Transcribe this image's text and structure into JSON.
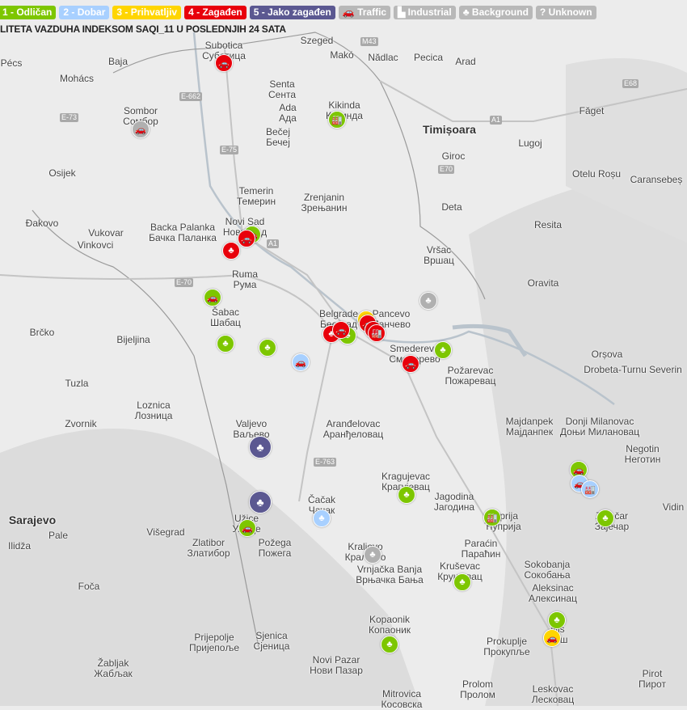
{
  "legend": [
    {
      "label": "1 - Odličan",
      "color": "#7dc600"
    },
    {
      "label": "2 - Dobar",
      "color": "#a8d0ff"
    },
    {
      "label": "3 - Prihvatljiv",
      "color": "#ffd500"
    },
    {
      "label": "4 - Zagađen",
      "color": "#e8000b"
    },
    {
      "label": "5 - Jako zagađen",
      "color": "#5b5891"
    },
    {
      "label": "Traffic",
      "color": "#b8b8b8",
      "icon": "car-icon"
    },
    {
      "label": "Industrial",
      "color": "#b8b8b8",
      "icon": "factory-icon"
    },
    {
      "label": "Background",
      "color": "#b8b8b8",
      "icon": "tree-icon"
    },
    {
      "label": "Unknown",
      "color": "#b8b8b8",
      "icon": "question-icon"
    }
  ],
  "title": "LITETA VAZDUHA INDEKSOM SAQI_11 U POSLEDNJIH 24 SATA",
  "cities": [
    "Subotica\nСуботица",
    "Sombor\nСомбор",
    "Kikinda\nКикинда",
    "Senta\nСента",
    "Ada\nАда",
    "Bečej\nБечеј",
    "Temerin\nТемерин",
    "Zrenjanin\nЗрењанин",
    "Novi Sad\nНови Сад",
    "Backa Palanka\nБачка Паланка",
    "Ruma\nРума",
    "Šabac\nШабац",
    "Belgrade\nБеоград",
    "Pancevo\nПанчево",
    "Smederevo\nСмедерево",
    "Požarevac\nПожаревац",
    "Vršac\nВршац",
    "Valjevo\nВаљево",
    "Aranđelovac\nАранђеловац",
    "Kragujevac\nКрагујевац",
    "Jagodina\nЈагодина",
    "Užice\nУжице",
    "Čačak\nЧачак",
    "Kraljevo\nКраљево",
    "Požega\nПожега",
    "Zlatibor\nЗлатибор",
    "Vrnjačka Banja\nВрњачка Бања",
    "Kruševac\nКрушевац",
    "Paraćin\nПараћин",
    "Ćuprija\nЋуприја",
    "Zaječar\nЗајечар",
    "Niš\nНиш",
    "Prokuplje\nПрокупље",
    "Aleksinac\nАлексинац",
    "Sokobanja\nСокобања",
    "Leskovac\nЛесковац",
    "Novi Pazar\nНови Пазар",
    "Kopaonik\nКопаоник",
    "Sjenica\nСјеница",
    "Prijepolje\nПријепоље",
    "Mitrovica\nКосовска",
    "Loznica\nЛозница",
    "Bijeljina",
    "Tuzla",
    "Brčko",
    "Vukovar",
    "Vinkovci",
    "Osijek",
    "Đakovo",
    "Sarajevo",
    "Timișoara",
    "Arad",
    "Makó",
    "Szeged",
    "Baja",
    "Pécs",
    "Mohács",
    "Nădlac",
    "Pecica",
    "Lugoj",
    "Făget",
    "Caransebeș",
    "Resita",
    "Oravita",
    "Giroc",
    "Deta",
    "Orșova",
    "Drobeta-Turnu Severin",
    "Negotin\nНеготин",
    "Donji Milanovac\nДоњи Милановац",
    "Majdanpek\nМајданпек",
    "Vidin",
    "Pirot\nПирот",
    "Prolom\nПролом",
    "Otelu Roșu",
    "Zvornik",
    "Višegrad",
    "Foča",
    "Ilidža",
    "Pale",
    "Žabljak\nЖабљак"
  ],
  "markers": [
    {
      "level": 4,
      "type": "traffic"
    },
    {
      "level": 0,
      "type": "traffic"
    },
    {
      "level": 1,
      "type": "industrial"
    },
    {
      "level": 1,
      "type": "traffic"
    },
    {
      "level": 4,
      "type": "traffic"
    },
    {
      "level": 4,
      "type": "background"
    },
    {
      "level": 1,
      "type": "traffic"
    },
    {
      "level": 1,
      "type": "background"
    },
    {
      "level": 1,
      "type": "background"
    },
    {
      "level": 2,
      "type": "traffic"
    },
    {
      "level": 1,
      "type": "background"
    },
    {
      "level": 4,
      "type": "background"
    },
    {
      "level": 4,
      "type": "traffic"
    },
    {
      "level": 3,
      "type": "traffic"
    },
    {
      "level": 4,
      "type": "traffic"
    },
    {
      "level": 4,
      "type": "traffic"
    },
    {
      "level": 4,
      "type": "industrial"
    },
    {
      "level": 0,
      "type": "background"
    },
    {
      "level": 4,
      "type": "traffic"
    },
    {
      "level": 1,
      "type": "background"
    },
    {
      "level": 5,
      "type": "background"
    },
    {
      "level": 5,
      "type": "background"
    },
    {
      "level": 1,
      "type": "traffic"
    },
    {
      "level": 2,
      "type": "background"
    },
    {
      "level": 0,
      "type": "background"
    },
    {
      "level": 1,
      "type": "background"
    },
    {
      "level": 1,
      "type": "industrial"
    },
    {
      "level": 1,
      "type": "traffic"
    },
    {
      "level": 2,
      "type": "traffic"
    },
    {
      "level": 2,
      "type": "industrial"
    },
    {
      "level": 1,
      "type": "background"
    },
    {
      "level": 1,
      "type": "background"
    },
    {
      "level": 1,
      "type": "background"
    },
    {
      "level": 3,
      "type": "traffic"
    },
    {
      "level": 1,
      "type": "background"
    }
  ],
  "level_colors": {
    "0": "#b0b0b0",
    "1": "#7dc600",
    "2": "#a8d0ff",
    "3": "#ffd500",
    "4": "#e8000b",
    "5": "#5b5891"
  },
  "roads": [
    "E-662",
    "E-75",
    "E-70",
    "A1",
    "E-763",
    "E-73",
    "E70",
    "E68",
    "M43",
    "A1"
  ]
}
